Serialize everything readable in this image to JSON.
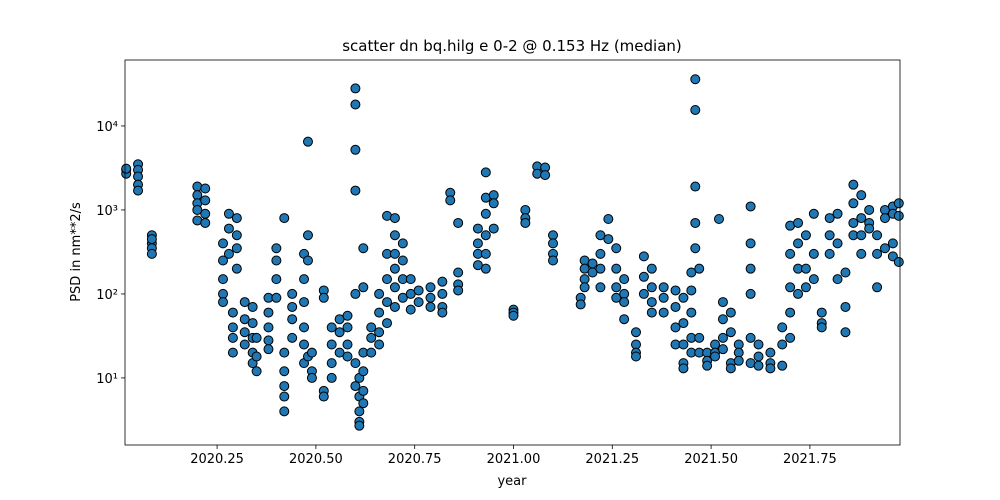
{
  "chart_data": {
    "type": "scatter",
    "title": "scatter dn bq.hilg e 0-2 @ 0.153 Hz (median)",
    "xlabel": "year",
    "ylabel": "PSD in nm**2/s",
    "log_y": true,
    "grid": false,
    "color": "#1f77b4",
    "edgecolor": "#000000",
    "xlim": [
      2020.017,
      2021.978
    ],
    "ylim": [
      1.59,
      61000
    ],
    "xticks": [
      2020.25,
      {
        "value": 2020.5,
        "label": "2020.50"
      },
      2020.75,
      {
        "value": 2021.0,
        "label": "2021.00"
      },
      2021.25,
      {
        "value": 2021.5,
        "label": "2021.50"
      },
      2021.75
    ],
    "yticks": [
      {
        "value": 10,
        "label": "10¹"
      },
      {
        "value": 100,
        "label": "10²"
      },
      {
        "value": 1000,
        "label": "10³"
      },
      {
        "value": 10000,
        "label": "10⁴"
      }
    ],
    "x": [
      2020.02,
      2020.02,
      2020.02,
      2020.05,
      2020.05,
      2020.05,
      2020.05,
      2020.05,
      2020.085,
      2020.085,
      2020.085,
      2020.085,
      2020.085,
      2020.2,
      2020.2,
      2020.2,
      2020.2,
      2020.2,
      2020.22,
      2020.22,
      2020.22,
      2020.22,
      2020.265,
      2020.265,
      2020.265,
      2020.265,
      2020.265,
      2020.28,
      2020.28,
      2020.28,
      2020.3,
      2020.3,
      2020.3,
      2020.3,
      2020.29,
      2020.29,
      2020.29,
      2020.29,
      2020.32,
      2020.32,
      2020.32,
      2020.32,
      2020.34,
      2020.34,
      2020.34,
      2020.34,
      2020.34,
      2020.35,
      2020.35,
      2020.35,
      2020.38,
      2020.38,
      2020.38,
      2020.38,
      2020.38,
      2020.4,
      2020.4,
      2020.4,
      2020.4,
      2020.42,
      2020.42,
      2020.42,
      2020.42,
      2020.42,
      2020.42,
      2020.44,
      2020.44,
      2020.44,
      2020.44,
      2020.47,
      2020.47,
      2020.47,
      2020.47,
      2020.47,
      2020.47,
      2020.48,
      2020.48,
      2020.48,
      2020.48,
      2020.49,
      2020.49,
      2020.49,
      2020.52,
      2020.52,
      2020.52,
      2020.52,
      2020.54,
      2020.54,
      2020.54,
      2020.54,
      2020.56,
      2020.56,
      2020.56,
      2020.58,
      2020.58,
      2020.58,
      2020.58,
      2020.6,
      2020.6,
      2020.6,
      2020.6,
      2020.6,
      2020.6,
      2020.6,
      2020.61,
      2020.61,
      2020.61,
      2020.61,
      2020.61,
      2020.62,
      2020.62,
      2020.62,
      2020.62,
      2020.62,
      2020.62,
      2020.64,
      2020.64,
      2020.64,
      2020.66,
      2020.66,
      2020.66,
      2020.66,
      2020.68,
      2020.68,
      2020.68,
      2020.68,
      2020.68,
      2020.7,
      2020.7,
      2020.7,
      2020.7,
      2020.7,
      2020.7,
      2020.72,
      2020.72,
      2020.72,
      2020.72,
      2020.74,
      2020.74,
      2020.74,
      2020.76,
      2020.76,
      2020.79,
      2020.79,
      2020.79,
      2020.82,
      2020.82,
      2020.82,
      2020.82,
      2020.84,
      2020.84,
      2020.86,
      2020.86,
      2020.86,
      2020.86,
      2020.91,
      2020.91,
      2020.91,
      2020.91,
      2020.93,
      2020.93,
      2020.93,
      2020.93,
      2020.93,
      2020.93,
      2020.95,
      2020.95,
      2020.95,
      2021.0,
      2021.0,
      2021.0,
      2021.03,
      2021.03,
      2021.03,
      2021.06,
      2021.06,
      2021.08,
      2021.08,
      2021.1,
      2021.1,
      2021.1,
      2021.1,
      2021.17,
      2021.17,
      2021.18,
      2021.18,
      2021.18,
      2021.18,
      2021.2,
      2021.2,
      2021.22,
      2021.22,
      2021.22,
      2021.22,
      2021.24,
      2021.24,
      2021.26,
      2021.26,
      2021.26,
      2021.26,
      2021.28,
      2021.28,
      2021.28,
      2021.28,
      2021.31,
      2021.31,
      2021.31,
      2021.31,
      2021.33,
      2021.33,
      2021.33,
      2021.35,
      2021.35,
      2021.35,
      2021.35,
      2021.38,
      2021.38,
      2021.38,
      2021.41,
      2021.41,
      2021.41,
      2021.41,
      2021.43,
      2021.43,
      2021.43,
      2021.43,
      2021.43,
      2021.45,
      2021.45,
      2021.45,
      2021.45,
      2021.45,
      2021.46,
      2021.46,
      2021.46,
      2021.46,
      2021.46,
      2021.47,
      2021.47,
      2021.47,
      2021.49,
      2021.49,
      2021.49,
      2021.51,
      2021.51,
      2021.51,
      2021.52,
      2021.53,
      2021.53,
      2021.53,
      2021.53,
      2021.55,
      2021.55,
      2021.55,
      2021.55,
      2021.57,
      2021.57,
      2021.57,
      2021.6,
      2021.6,
      2021.6,
      2021.6,
      2021.6,
      2021.6,
      2021.62,
      2021.62,
      2021.62,
      2021.65,
      2021.65,
      2021.65,
      2021.68,
      2021.68,
      2021.68,
      2021.7,
      2021.7,
      2021.7,
      2021.7,
      2021.7,
      2021.72,
      2021.72,
      2021.72,
      2021.72,
      2021.74,
      2021.74,
      2021.74,
      2021.76,
      2021.76,
      2021.76,
      2021.78,
      2021.78,
      2021.78,
      2021.8,
      2021.8,
      2021.8,
      2021.82,
      2021.82,
      2021.82,
      2021.84,
      2021.84,
      2021.84,
      2021.86,
      2021.86,
      2021.86,
      2021.86,
      2021.88,
      2021.88,
      2021.88,
      2021.88,
      2021.9,
      2021.9,
      2021.9,
      2021.92,
      2021.92,
      2021.92,
      2021.94,
      2021.94,
      2021.94,
      2021.96,
      2021.96,
      2021.96,
      2021.96,
      2021.975,
      2021.975,
      2021.975
    ],
    "y": [
      3000,
      2700,
      3100,
      3500,
      3000,
      2500,
      2000,
      1700,
      500,
      400,
      350,
      300,
      450,
      1900,
      1500,
      1200,
      1000,
      750,
      1800,
      1300,
      900,
      700,
      400,
      250,
      150,
      100,
      80,
      900,
      600,
      300,
      800,
      500,
      350,
      200,
      60,
      40,
      30,
      20,
      80,
      50,
      35,
      25,
      70,
      45,
      30,
      20,
      15,
      12,
      18,
      30,
      90,
      60,
      40,
      28,
      22,
      350,
      250,
      150,
      90,
      20,
      12,
      8,
      6,
      4,
      800,
      100,
      70,
      50,
      30,
      300,
      150,
      80,
      40,
      25,
      15,
      500,
      250,
      6500,
      18,
      20,
      12,
      10,
      110,
      90,
      7,
      6,
      40,
      25,
      15,
      10,
      50,
      35,
      20,
      55,
      40,
      25,
      18,
      100,
      18000,
      28000,
      5200,
      1700,
      15,
      8,
      10,
      6,
      4,
      3,
      2.7,
      20,
      12,
      7,
      5,
      350,
      120,
      40,
      30,
      20,
      100,
      60,
      35,
      25,
      850,
      300,
      150,
      80,
      45,
      800,
      500,
      300,
      200,
      120,
      70,
      400,
      250,
      150,
      90,
      150,
      100,
      65,
      110,
      80,
      120,
      90,
      70,
      140,
      100,
      70,
      60,
      1600,
      1300,
      700,
      180,
      130,
      110,
      600,
      400,
      300,
      220,
      2800,
      1400,
      900,
      500,
      300,
      200,
      1500,
      1200,
      600,
      65,
      60,
      55,
      1000,
      800,
      700,
      3300,
      2700,
      3200,
      2600,
      500,
      400,
      300,
      250,
      90,
      75,
      250,
      200,
      150,
      120,
      230,
      180,
      500,
      300,
      200,
      120,
      780,
      450,
      350,
      200,
      120,
      90,
      150,
      100,
      80,
      50,
      35,
      25,
      20,
      18,
      280,
      160,
      100,
      200,
      120,
      80,
      60,
      120,
      90,
      60,
      110,
      70,
      40,
      25,
      90,
      45,
      25,
      15,
      13,
      180,
      110,
      60,
      30,
      20,
      36000,
      15500,
      1900,
      700,
      350,
      200,
      30,
      20,
      20,
      16,
      14,
      25,
      20,
      18,
      780,
      80,
      50,
      30,
      22,
      60,
      35,
      15,
      13,
      25,
      20,
      16,
      1100,
      400,
      200,
      100,
      30,
      15,
      25,
      18,
      14,
      20,
      15,
      13,
      40,
      25,
      14,
      650,
      300,
      120,
      60,
      30,
      700,
      400,
      200,
      100,
      500,
      200,
      120,
      900,
      300,
      150,
      60,
      45,
      40,
      800,
      500,
      300,
      900,
      400,
      150,
      70,
      35,
      180,
      2000,
      1200,
      700,
      500,
      1500,
      800,
      500,
      300,
      1000,
      700,
      600,
      500,
      300,
      120,
      1000,
      800,
      350,
      1100,
      900,
      400,
      280,
      1200,
      850,
      240
    ]
  }
}
